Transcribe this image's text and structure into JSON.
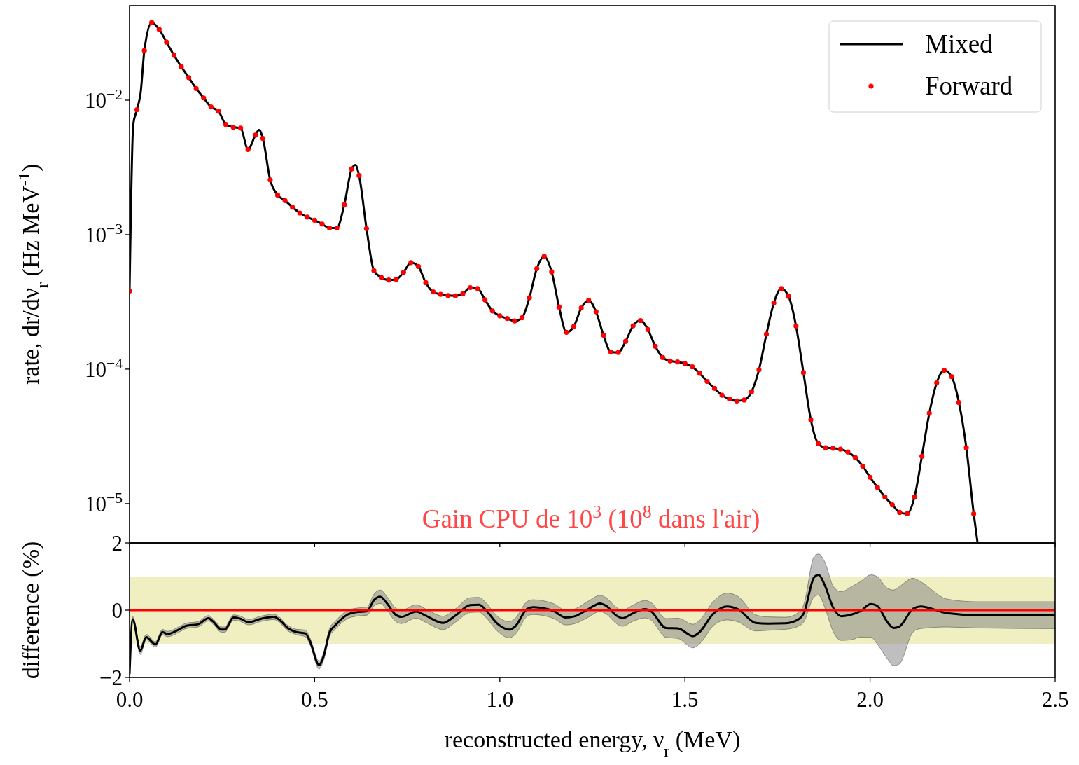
{
  "chart_data": [
    {
      "type": "line",
      "ylabel": "rate, dr/dν$_{r}$ (Hz MeV$^{-1}$)",
      "log": true,
      "legend": "top right",
      "tick_labels": "y",
      "xlim": [
        0,
        2.5
      ],
      "xticks": [
        {
          "value": 0,
          "label": null
        },
        {
          "value": 0.5,
          "label": null
        },
        {
          "value": 1,
          "label": null
        },
        {
          "value": 1.5,
          "label": null
        },
        {
          "value": 2,
          "label": null
        },
        {
          "value": 2.5,
          "label": null
        }
      ],
      "ylim": [
        5.1e-06,
        0.0505
      ],
      "yticks": [
        {
          "value": 1e-05,
          "label": "10$^{−5}$"
        },
        {
          "value": 0.0001,
          "label": "10$^{−4}$"
        },
        {
          "value": 0.001,
          "label": "10$^{−3}$"
        },
        {
          "value": 0.01,
          "label": "10$^{−2}$"
        }
      ],
      "annotations": [
        "Gain CPU de 10$^{3}$ (10$^{8}$ dans l'air)"
      ],
      "series": [
        {
          "name": "Mixed",
          "color": "#000000",
          "x": [
            0,
            0.01,
            0.02,
            0.03,
            0.04,
            0.06,
            0.08,
            0.1,
            0.12,
            0.14,
            0.16,
            0.18,
            0.2,
            0.22,
            0.24,
            0.26,
            0.28,
            0.3,
            0.32,
            0.34,
            0.35,
            0.36,
            0.38,
            0.4,
            0.42,
            0.44,
            0.46,
            0.48,
            0.5,
            0.52,
            0.54,
            0.56,
            0.58,
            0.6,
            0.61,
            0.62,
            0.64,
            0.66,
            0.68,
            0.7,
            0.72,
            0.74,
            0.76,
            0.78,
            0.8,
            0.82,
            0.84,
            0.86,
            0.88,
            0.9,
            0.92,
            0.94,
            0.96,
            0.98,
            1,
            1.02,
            1.04,
            1.06,
            1.08,
            1.1,
            1.12,
            1.14,
            1.16,
            1.18,
            1.2,
            1.22,
            1.24,
            1.26,
            1.28,
            1.3,
            1.32,
            1.34,
            1.36,
            1.38,
            1.4,
            1.42,
            1.44,
            1.46,
            1.48,
            1.5,
            1.52,
            1.54,
            1.56,
            1.58,
            1.6,
            1.62,
            1.64,
            1.66,
            1.68,
            1.7,
            1.72,
            1.74,
            1.76,
            1.78,
            1.8,
            1.82,
            1.84,
            1.86,
            1.88,
            1.9,
            1.92,
            1.94,
            1.96,
            1.98,
            2,
            2.02,
            2.04,
            2.06,
            2.08,
            2.1,
            2.12,
            2.14,
            2.16,
            2.18,
            2.2,
            2.22,
            2.24,
            2.26,
            2.28,
            2.29
          ],
          "values": [
            0.00038,
            0.0066,
            0.0085,
            0.0114,
            0.0234,
            0.0378,
            0.0336,
            0.027,
            0.0216,
            0.0177,
            0.0147,
            0.0122,
            0.0104,
            0.0089,
            0.0083,
            0.0066,
            0.0063,
            0.0062,
            0.0043,
            0.0055,
            0.006,
            0.0052,
            0.00255,
            0.00197,
            0.00179,
            0.0016,
            0.00145,
            0.00135,
            0.00128,
            0.0012,
            0.00112,
            0.00112,
            0.00167,
            0.00308,
            0.0033,
            0.00275,
            0.00111,
            0.00054,
            0.00048,
            0.00046,
            0.000465,
            0.000525,
            0.00062,
            0.00058,
            0.00044,
            0.000375,
            0.00036,
            0.000353,
            0.000351,
            0.000363,
            0.000404,
            0.000398,
            0.000328,
            0.000271,
            0.000249,
            0.000238,
            0.000228,
            0.000241,
            0.00034,
            0.00056,
            0.00069,
            0.00053,
            0.00029,
            0.000188,
            0.000208,
            0.000285,
            0.000325,
            0.000267,
            0.000179,
            0.000134,
            0.000133,
            0.000161,
            0.00021,
            0.00023,
            0.000197,
            0.000148,
            0.000122,
            0.000115,
            0.000113,
            0.00011,
            0.000104,
            9.3e-05,
            8.1e-05,
            7.2e-05,
            6.4e-05,
            6e-05,
            5.8e-05,
            5.9e-05,
            6.8e-05,
            9.9e-05,
            0.000182,
            0.00031,
            0.000397,
            0.000347,
            0.000209,
            9.4e-05,
            4.2e-05,
            2.8e-05,
            2.6e-05,
            2.58e-05,
            2.54e-05,
            2.42e-05,
            2.2e-05,
            1.9e-05,
            1.57e-05,
            1.32e-05,
            1.12e-05,
            9.8e-06,
            8.6e-06,
            8.4e-06,
            1.12e-05,
            2.25e-05,
            4.7e-05,
            7.9e-05,
            9.8e-05,
            8.8e-05,
            5.65e-05,
            2.6e-05,
            8.4e-06,
            5.2e-06
          ]
        },
        {
          "name": "Forward",
          "type": "scatter",
          "color": "#ff0000",
          "x": [
            0,
            0.02,
            0.04,
            0.06,
            0.08,
            0.1,
            0.12,
            0.14,
            0.16,
            0.18,
            0.2,
            0.22,
            0.24,
            0.26,
            0.28,
            0.3,
            0.32,
            0.34,
            0.36,
            0.38,
            0.4,
            0.42,
            0.44,
            0.46,
            0.48,
            0.5,
            0.52,
            0.54,
            0.56,
            0.58,
            0.6,
            0.62,
            0.64,
            0.66,
            0.68,
            0.7,
            0.72,
            0.74,
            0.76,
            0.78,
            0.8,
            0.82,
            0.84,
            0.86,
            0.88,
            0.9,
            0.92,
            0.94,
            0.96,
            0.98,
            1,
            1.02,
            1.04,
            1.06,
            1.08,
            1.1,
            1.12,
            1.14,
            1.16,
            1.18,
            1.2,
            1.22,
            1.24,
            1.26,
            1.28,
            1.3,
            1.32,
            1.34,
            1.36,
            1.38,
            1.4,
            1.42,
            1.44,
            1.46,
            1.48,
            1.5,
            1.52,
            1.54,
            1.56,
            1.58,
            1.6,
            1.62,
            1.64,
            1.66,
            1.68,
            1.7,
            1.72,
            1.74,
            1.76,
            1.78,
            1.8,
            1.82,
            1.84,
            1.86,
            1.88,
            1.9,
            1.92,
            1.94,
            1.96,
            1.98,
            2,
            2.02,
            2.04,
            2.06,
            2.08,
            2.1,
            2.12,
            2.14,
            2.16,
            2.18,
            2.2,
            2.22,
            2.24,
            2.26,
            2.28
          ],
          "values": [
            0.00038,
            0.0085,
            0.0234,
            0.0378,
            0.0336,
            0.027,
            0.0216,
            0.0177,
            0.0147,
            0.0122,
            0.0104,
            0.0089,
            0.0083,
            0.0066,
            0.0063,
            0.0062,
            0.0043,
            0.0055,
            0.0052,
            0.00255,
            0.00197,
            0.00179,
            0.0016,
            0.00145,
            0.00135,
            0.00128,
            0.0012,
            0.00112,
            0.00112,
            0.00167,
            0.00308,
            0.00275,
            0.00111,
            0.00054,
            0.00048,
            0.00046,
            0.000465,
            0.000525,
            0.00062,
            0.00058,
            0.00044,
            0.000375,
            0.00036,
            0.000353,
            0.000351,
            0.000363,
            0.000404,
            0.000398,
            0.000328,
            0.000271,
            0.000249,
            0.000238,
            0.000228,
            0.000241,
            0.00034,
            0.00056,
            0.00069,
            0.00053,
            0.00029,
            0.000188,
            0.000208,
            0.000285,
            0.000325,
            0.000267,
            0.000179,
            0.000134,
            0.000133,
            0.000161,
            0.00021,
            0.00023,
            0.000197,
            0.000148,
            0.000122,
            0.000115,
            0.000113,
            0.00011,
            0.000104,
            9.3e-05,
            8.1e-05,
            7.2e-05,
            6.4e-05,
            6e-05,
            5.8e-05,
            5.9e-05,
            6.8e-05,
            9.9e-05,
            0.000182,
            0.00031,
            0.000397,
            0.000347,
            0.000209,
            9.4e-05,
            4.2e-05,
            2.8e-05,
            2.6e-05,
            2.58e-05,
            2.54e-05,
            2.42e-05,
            2.2e-05,
            1.9e-05,
            1.57e-05,
            1.32e-05,
            1.12e-05,
            9.8e-06,
            8.6e-06,
            8.4e-06,
            1.12e-05,
            2.25e-05,
            4.7e-05,
            7.9e-05,
            9.8e-05,
            8.8e-05,
            5.65e-05,
            2.6e-05,
            8.4e-06
          ]
        }
      ]
    },
    {
      "type": "line",
      "xlabel": "reconstructed energy, ν$_{r}$ (MeV)",
      "ylabel": "difference (%)",
      "xlim": [
        0,
        2.5
      ],
      "xticks": [
        {
          "value": 0,
          "label": "0.0"
        },
        {
          "value": 0.5,
          "label": "0.5"
        },
        {
          "value": 1,
          "label": "1.0"
        },
        {
          "value": 1.5,
          "label": "1.5"
        },
        {
          "value": 2,
          "label": "2.0"
        },
        {
          "value": 2.5,
          "label": "2.5"
        }
      ],
      "ylim": [
        -2,
        2
      ],
      "yticks": [
        {
          "value": -2,
          "label": "−2"
        },
        0,
        2
      ],
      "bands": [
        {
          "axis": "y",
          "from": -1,
          "to": 1,
          "color": "#efefc2"
        }
      ],
      "ref_lines": [
        {
          "axis": "y",
          "value": 0,
          "color": "#ff0000"
        }
      ],
      "series": [
        {
          "color": "#000000",
          "x": [
            0,
            0.0085,
            0.029,
            0.045,
            0.07,
            0.089,
            0.102,
            0.136,
            0.152,
            0.185,
            0.213,
            0.225,
            0.249,
            0.257,
            0.281,
            0.298,
            0.322,
            0.354,
            0.39,
            0.403,
            0.427,
            0.451,
            0.475,
            0.488,
            0.512,
            0.524,
            0.54,
            0.556,
            0.589,
            0.613,
            0.641,
            0.661,
            0.677,
            0.694,
            0.718,
            0.734,
            0.774,
            0.799,
            0.847,
            0.88,
            0.92,
            0.944,
            0.96,
            0.993,
            1.025,
            1.041,
            1.073,
            1.089,
            1.146,
            1.178,
            1.203,
            1.239,
            1.271,
            1.287,
            1.315,
            1.331,
            1.36,
            1.392,
            1.408,
            1.449,
            1.481,
            1.522,
            1.538,
            1.578,
            1.614,
            1.643,
            1.691,
            1.724,
            1.772,
            1.804,
            1.821,
            1.849,
            1.861,
            1.877,
            1.901,
            1.922,
            1.95,
            1.974,
            2.002,
            2.019,
            2.047,
            2.063,
            2.079,
            2.116,
            2.136,
            2.208,
            2.289,
            2.5
          ],
          "values": [
            -1.9,
            -0.27,
            -1.2,
            -0.8,
            -1.02,
            -0.65,
            -0.71,
            -0.56,
            -0.47,
            -0.42,
            -0.24,
            -0.33,
            -0.58,
            -0.58,
            -0.22,
            -0.25,
            -0.36,
            -0.26,
            -0.2,
            -0.27,
            -0.53,
            -0.65,
            -0.69,
            -0.94,
            -1.63,
            -1.38,
            -0.67,
            -0.45,
            -0.13,
            -0.06,
            -0.03,
            0.31,
            0.4,
            0.22,
            -0.13,
            -0.2,
            -0.04,
            -0.16,
            -0.38,
            -0.16,
            0.15,
            0.16,
            0.03,
            -0.4,
            -0.58,
            -0.49,
            0.03,
            0.09,
            -0.03,
            -0.22,
            -0.18,
            0.03,
            0.2,
            0.13,
            -0.16,
            -0.24,
            -0.09,
            0.03,
            -0.03,
            -0.53,
            -0.54,
            -0.77,
            -0.67,
            -0.09,
            0.11,
            0.03,
            -0.38,
            -0.4,
            -0.39,
            -0.29,
            -0.09,
            0.98,
            1.05,
            0.76,
            0.06,
            -0.18,
            -0.13,
            -0.03,
            0.18,
            0.13,
            -0.36,
            -0.53,
            -0.49,
            0.04,
            0.11,
            -0.09,
            -0.15,
            -0.15
          ],
          "lower": [
            -2,
            -0.35,
            -1.32,
            -0.88,
            -1.1,
            -0.73,
            -0.79,
            -0.64,
            -0.55,
            -0.5,
            -0.32,
            -0.41,
            -0.66,
            -0.66,
            -0.3,
            -0.33,
            -0.44,
            -0.34,
            -0.28,
            -0.35,
            -0.61,
            -0.73,
            -0.79,
            -1.04,
            -1.75,
            -1.5,
            -0.79,
            -0.57,
            -0.25,
            -0.18,
            -0.15,
            0.13,
            0.2,
            0.02,
            -0.33,
            -0.4,
            -0.24,
            -0.36,
            -0.58,
            -0.36,
            -0.07,
            -0.06,
            -0.19,
            -0.62,
            -0.82,
            -0.73,
            -0.19,
            -0.13,
            -0.25,
            -0.44,
            -0.4,
            -0.21,
            -0.04,
            -0.11,
            -0.4,
            -0.48,
            -0.33,
            -0.23,
            -0.29,
            -0.81,
            -0.84,
            -1.12,
            -1.02,
            -0.45,
            -0.29,
            -0.35,
            -0.62,
            -0.6,
            -0.57,
            -0.49,
            -0.35,
            0.4,
            0.45,
            0.1,
            -0.65,
            -0.9,
            -0.88,
            -0.8,
            -0.8,
            -1,
            -1.45,
            -1.65,
            -1.6,
            -0.65,
            -0.55,
            -0.5,
            -0.53,
            -0.55
          ],
          "upper": [
            -1.8,
            -0.19,
            -1.08,
            -0.72,
            -0.94,
            -0.57,
            -0.63,
            -0.48,
            -0.39,
            -0.34,
            -0.16,
            -0.25,
            -0.5,
            -0.5,
            -0.14,
            -0.17,
            -0.28,
            -0.18,
            -0.12,
            -0.19,
            -0.45,
            -0.57,
            -0.59,
            -0.84,
            -1.51,
            -1.26,
            -0.55,
            -0.33,
            -0.01,
            0.06,
            0.09,
            0.49,
            0.6,
            0.42,
            0.07,
            0,
            0.16,
            0.04,
            -0.18,
            0.04,
            0.37,
            0.38,
            0.25,
            -0.18,
            -0.34,
            -0.25,
            0.25,
            0.31,
            0.19,
            0,
            0.04,
            0.27,
            0.44,
            0.37,
            0.08,
            0,
            0.15,
            0.29,
            0.23,
            -0.25,
            -0.24,
            -0.42,
            -0.32,
            0.27,
            0.51,
            0.41,
            -0.14,
            -0.2,
            -0.21,
            -0.09,
            0.17,
            1.6,
            1.67,
            1.45,
            0.7,
            0.55,
            0.7,
            0.85,
            1.05,
            1,
            0.65,
            0.6,
            0.7,
            0.95,
            0.85,
            0.33,
            0.25,
            0.25
          ]
        }
      ]
    }
  ]
}
